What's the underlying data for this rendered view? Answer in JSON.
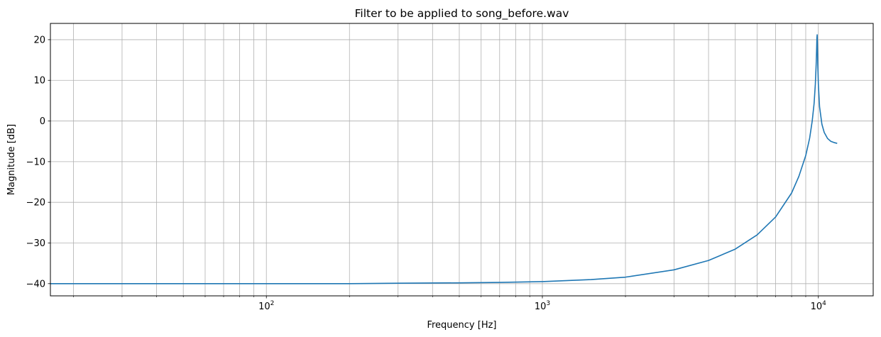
{
  "chart_data": {
    "type": "line",
    "title": "Filter to be applied to song_before.wav",
    "xlabel": "Frequency [Hz]",
    "ylabel": "Magnitude [dB]",
    "xscale": "log",
    "xlim": [
      16.5,
      15800
    ],
    "ylim": [
      -43,
      24
    ],
    "grid": "on (major and minor x gridlines, major y gridlines)",
    "x_ticks": [
      {
        "base": "10",
        "exp": "2",
        "value": 100
      },
      {
        "base": "10",
        "exp": "3",
        "value": 1000
      },
      {
        "base": "10",
        "exp": "4",
        "value": 10000
      }
    ],
    "y_ticks": [
      {
        "label": "20",
        "value": 20
      },
      {
        "label": "10",
        "value": 10
      },
      {
        "label": "0",
        "value": 0
      },
      {
        "label": "−10",
        "value": -10
      },
      {
        "label": "−20",
        "value": -20
      },
      {
        "label": "−30",
        "value": -30
      },
      {
        "label": "−40",
        "value": -40
      }
    ],
    "series": [
      {
        "color": "#1f77b4",
        "x": [
          16.5,
          30,
          60,
          100,
          200,
          300,
          500,
          700,
          1000,
          1500,
          2000,
          3000,
          4000,
          5000,
          6000,
          7000,
          8000,
          8500,
          9000,
          9300,
          9500,
          9650,
          9750,
          9820,
          9860,
          9880,
          9900,
          9920,
          9950,
          10000,
          10100,
          10300,
          10500,
          10800,
          11100,
          11400,
          11700
        ],
        "y": [
          -40,
          -40,
          -40,
          -40,
          -40,
          -39.9,
          -39.8,
          -39.7,
          -39.5,
          -39,
          -38.4,
          -36.6,
          -34.3,
          -31.5,
          -28,
          -23.6,
          -17.7,
          -13.6,
          -8.5,
          -4.2,
          0,
          4.3,
          9,
          14,
          18,
          20.5,
          21.2,
          19,
          14,
          9,
          3.5,
          -0.8,
          -2.8,
          -4.3,
          -5,
          -5.3,
          -5.5
        ]
      }
    ]
  }
}
